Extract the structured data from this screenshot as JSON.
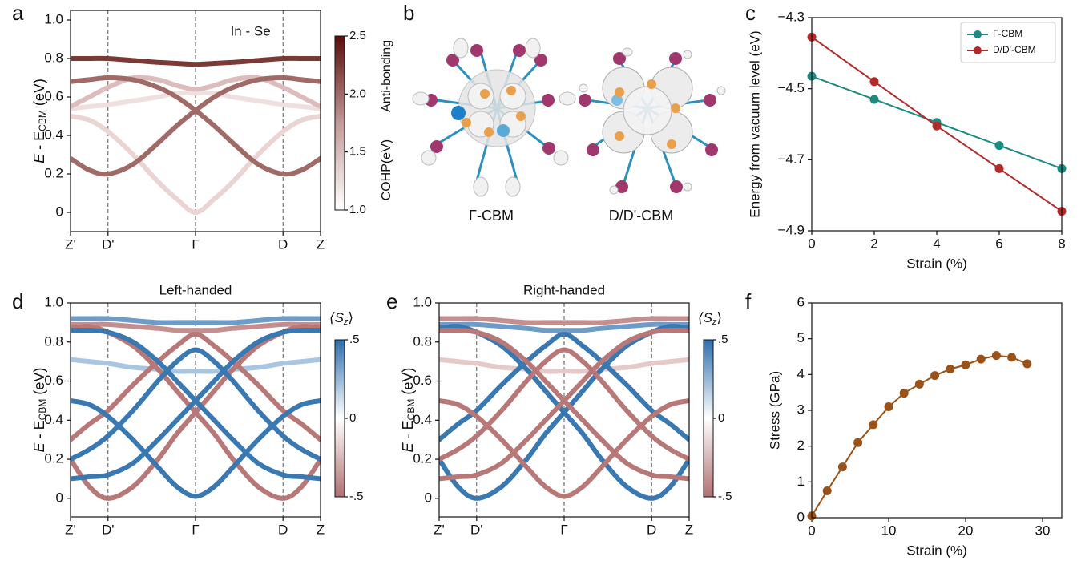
{
  "figure_b": {
    "panel": "b",
    "labels": [
      "Γ-CBM",
      "D/D'-CBM"
    ]
  },
  "chart_data": [
    {
      "type": "band",
      "panel": "a",
      "annotation": "In - Se",
      "ylabel": [
        "E",
        " - E",
        "CBM",
        " (eV)"
      ],
      "x": [
        0,
        0.075,
        0.15,
        0.25,
        0.35,
        0.425,
        0.5,
        0.575,
        0.65,
        0.75,
        0.85,
        0.925,
        1
      ],
      "xlim": [
        0,
        1
      ],
      "xticks": [
        {
          "value": 0,
          "label": "Z'"
        },
        {
          "value": 0.15,
          "label": "D'"
        },
        {
          "value": 0.5,
          "label": "Γ"
        },
        {
          "value": 0.85,
          "label": "D"
        },
        {
          "value": 1,
          "label": "Z"
        }
      ],
      "ylim": [
        -0.1,
        1.05
      ],
      "yticks": [
        0,
        0.2,
        0.4,
        0.6,
        0.8,
        {
          "value": 1,
          "label": "1.0"
        }
      ],
      "colorbar": {
        "clim": [
          1,
          2.5
        ],
        "colors": [
          "#ffffff",
          "#c29a98",
          "#5a0d0d"
        ],
        "ticks": [
          {
            "value": 1,
            "label": "1.0"
          },
          1.5,
          {
            "value": 2,
            "label": "2.0"
          },
          2.5
        ],
        "label": "COHP(eV)",
        "note": "Anti-bonding"
      },
      "series": [
        {
          "color": "#efe0e0",
          "values": [
            0.54,
            0.55,
            0.56,
            0.58,
            0.6,
            0.62,
            0.62,
            0.62,
            0.6,
            0.58,
            0.56,
            0.55,
            0.54
          ]
        },
        {
          "color": "#ead4d4",
          "values": [
            0.5,
            0.48,
            0.42,
            0.3,
            0.16,
            0.07,
            0,
            0.07,
            0.16,
            0.3,
            0.42,
            0.48,
            0.5
          ]
        },
        {
          "color": "#dcbcbc",
          "values": [
            0.55,
            0.6,
            0.65,
            0.7,
            0.69,
            0.66,
            0.64,
            0.66,
            0.69,
            0.7,
            0.65,
            0.6,
            0.55
          ]
        },
        {
          "color": "#a06a66",
          "values": [
            0.28,
            0.22,
            0.2,
            0.25,
            0.36,
            0.45,
            0.53,
            0.6,
            0.65,
            0.69,
            0.7,
            0.69,
            0.68
          ]
        },
        {
          "color": "#a06a66",
          "values": [
            0.68,
            0.69,
            0.7,
            0.69,
            0.65,
            0.6,
            0.53,
            0.45,
            0.36,
            0.25,
            0.2,
            0.22,
            0.28
          ]
        },
        {
          "color": "#7b3a36",
          "values": [
            0.8,
            0.8,
            0.8,
            0.79,
            0.78,
            0.775,
            0.77,
            0.775,
            0.78,
            0.79,
            0.8,
            0.8,
            0.8
          ]
        }
      ]
    },
    {
      "type": "line",
      "panel": "c",
      "xlabel": "Strain (%)",
      "ylabel": "Energy from vacuum level (eV)",
      "x": [
        0,
        2,
        4,
        6,
        8
      ],
      "xlim": [
        0,
        8
      ],
      "xticks": [
        0,
        2,
        4,
        6,
        8
      ],
      "ylim": [
        -4.9,
        -4.3
      ],
      "yticks": [
        {
          "value": -4.3,
          "label": "−4.3"
        },
        {
          "value": -4.5,
          "label": "−4.5"
        },
        {
          "value": -4.7,
          "label": "−4.7"
        },
        {
          "value": -4.9,
          "label": "−4.9"
        }
      ],
      "legend": "upper right",
      "series": [
        {
          "name": "Γ-CBM",
          "color": "#1b8a80",
          "values": [
            -4.465,
            -4.53,
            -4.595,
            -4.66,
            -4.725
          ]
        },
        {
          "name": "D/D'-CBM",
          "color": "#b22a2a",
          "values": [
            -4.355,
            -4.48,
            -4.605,
            -4.725,
            -4.845
          ]
        }
      ]
    },
    {
      "type": "band",
      "panel": "d",
      "title": "Left-handed",
      "ylabel": [
        "E",
        " - E",
        "CBM",
        " (eV)"
      ],
      "x": [
        0,
        0.075,
        0.15,
        0.25,
        0.35,
        0.425,
        0.5,
        0.575,
        0.65,
        0.75,
        0.85,
        0.925,
        1
      ],
      "xlim": [
        0,
        1
      ],
      "xticks": [
        {
          "value": 0,
          "label": "Z'"
        },
        {
          "value": 0.15,
          "label": "D'"
        },
        {
          "value": 0.5,
          "label": "Γ"
        },
        {
          "value": 0.85,
          "label": "D"
        },
        {
          "value": 1,
          "label": "Z"
        }
      ],
      "ylim": [
        -0.095,
        1
      ],
      "yticks": [
        0,
        0.2,
        0.4,
        0.6,
        0.8,
        {
          "value": 1,
          "label": "1.0"
        }
      ],
      "colorbar": {
        "clim": [
          -0.5,
          0.5
        ],
        "colors": [
          "#b07070",
          "#ffffff",
          "#2f6fad"
        ],
        "ticks": [
          {
            "value": 0.5,
            "label": ".5"
          },
          0,
          {
            "value": -0.5,
            "label": "-.5"
          }
        ],
        "label": [
          "⟨S",
          "z",
          "⟩"
        ]
      },
      "series": [
        {
          "color": "#a8c6e2",
          "values": [
            0.71,
            0.7,
            0.69,
            0.67,
            0.66,
            0.65,
            0.65,
            0.65,
            0.66,
            0.67,
            0.69,
            0.7,
            0.71
          ]
        },
        {
          "color": "#c58f8f",
          "values": [
            0.89,
            0.89,
            0.89,
            0.88,
            0.87,
            0.86,
            0.86,
            0.86,
            0.87,
            0.88,
            0.89,
            0.89,
            0.89
          ]
        },
        {
          "color": "#6d9cc8",
          "values": [
            0.92,
            0.92,
            0.92,
            0.91,
            0.9,
            0.9,
            0.9,
            0.9,
            0.9,
            0.91,
            0.92,
            0.92,
            0.92
          ]
        },
        {
          "color": "#b87878",
          "values": [
            0.2,
            0.06,
            0,
            0.06,
            0.2,
            0.33,
            0.44,
            0.55,
            0.66,
            0.78,
            0.85,
            0.88,
            0.87
          ]
        },
        {
          "color": "#b87878",
          "values": [
            0.87,
            0.88,
            0.85,
            0.78,
            0.66,
            0.55,
            0.44,
            0.33,
            0.2,
            0.06,
            0,
            0.06,
            0.2
          ]
        },
        {
          "color": "#b87878",
          "values": [
            0.3,
            0.38,
            0.45,
            0.58,
            0.7,
            0.78,
            0.84,
            0.78,
            0.7,
            0.58,
            0.45,
            0.38,
            0.3
          ]
        },
        {
          "color": "#3a78b2",
          "values": [
            0.5,
            0.48,
            0.42,
            0.3,
            0.16,
            0.06,
            0.01,
            0.06,
            0.16,
            0.3,
            0.42,
            0.48,
            0.5
          ]
        },
        {
          "color": "#3a78b2",
          "values": [
            0.1,
            0.11,
            0.12,
            0.18,
            0.3,
            0.4,
            0.5,
            0.6,
            0.7,
            0.8,
            0.85,
            0.86,
            0.86
          ]
        },
        {
          "color": "#3a78b2",
          "values": [
            0.86,
            0.86,
            0.85,
            0.8,
            0.7,
            0.6,
            0.5,
            0.4,
            0.3,
            0.18,
            0.12,
            0.11,
            0.1
          ]
        },
        {
          "color": "#3a78b2",
          "values": [
            0.2,
            0.25,
            0.32,
            0.45,
            0.6,
            0.7,
            0.76,
            0.7,
            0.6,
            0.45,
            0.32,
            0.25,
            0.2
          ]
        }
      ]
    },
    {
      "type": "band",
      "panel": "e",
      "title": "Right-handed",
      "ylabel": [
        "E",
        " - E",
        "CBM",
        " (eV)"
      ],
      "x": [
        0,
        0.075,
        0.15,
        0.25,
        0.35,
        0.425,
        0.5,
        0.575,
        0.65,
        0.75,
        0.85,
        0.925,
        1
      ],
      "xlim": [
        0,
        1
      ],
      "xticks": [
        {
          "value": 0,
          "label": "Z'"
        },
        {
          "value": 0.15,
          "label": "D'"
        },
        {
          "value": 0.5,
          "label": "Γ"
        },
        {
          "value": 0.85,
          "label": "D"
        },
        {
          "value": 1,
          "label": "Z"
        }
      ],
      "ylim": [
        -0.095,
        1
      ],
      "yticks": [
        0,
        0.2,
        0.4,
        0.6,
        0.8,
        {
          "value": 1,
          "label": "1.0"
        }
      ],
      "colorbar": {
        "clim": [
          -0.5,
          0.5
        ],
        "colors": [
          "#b07070",
          "#ffffff",
          "#2f6fad"
        ],
        "ticks": [
          {
            "value": 0.5,
            "label": ".5"
          },
          0,
          {
            "value": -0.5,
            "label": "-.5"
          }
        ],
        "label": [
          "⟨S",
          "z",
          "⟩"
        ]
      },
      "series": [
        {
          "color": "#e6c9c9",
          "values": [
            0.71,
            0.7,
            0.69,
            0.67,
            0.66,
            0.65,
            0.65,
            0.65,
            0.66,
            0.67,
            0.69,
            0.7,
            0.71
          ]
        },
        {
          "color": "#6d9cc8",
          "values": [
            0.89,
            0.89,
            0.89,
            0.88,
            0.87,
            0.86,
            0.86,
            0.86,
            0.87,
            0.88,
            0.89,
            0.89,
            0.89
          ]
        },
        {
          "color": "#c58f8f",
          "values": [
            0.92,
            0.92,
            0.92,
            0.91,
            0.9,
            0.9,
            0.9,
            0.9,
            0.9,
            0.91,
            0.92,
            0.92,
            0.92
          ]
        },
        {
          "color": "#3a78b2",
          "values": [
            0.2,
            0.06,
            0,
            0.06,
            0.2,
            0.33,
            0.44,
            0.55,
            0.66,
            0.78,
            0.85,
            0.88,
            0.87
          ]
        },
        {
          "color": "#3a78b2",
          "values": [
            0.87,
            0.88,
            0.85,
            0.78,
            0.66,
            0.55,
            0.44,
            0.33,
            0.2,
            0.06,
            0,
            0.06,
            0.2
          ]
        },
        {
          "color": "#3a78b2",
          "values": [
            0.3,
            0.38,
            0.45,
            0.58,
            0.7,
            0.78,
            0.84,
            0.78,
            0.7,
            0.58,
            0.45,
            0.38,
            0.3
          ]
        },
        {
          "color": "#b87878",
          "values": [
            0.5,
            0.48,
            0.42,
            0.3,
            0.16,
            0.06,
            0.01,
            0.06,
            0.16,
            0.3,
            0.42,
            0.48,
            0.5
          ]
        },
        {
          "color": "#b87878",
          "values": [
            0.1,
            0.11,
            0.12,
            0.18,
            0.3,
            0.4,
            0.5,
            0.6,
            0.7,
            0.8,
            0.85,
            0.86,
            0.86
          ]
        },
        {
          "color": "#b87878",
          "values": [
            0.86,
            0.86,
            0.85,
            0.8,
            0.7,
            0.6,
            0.5,
            0.4,
            0.3,
            0.18,
            0.12,
            0.11,
            0.1
          ]
        },
        {
          "color": "#b87878",
          "values": [
            0.2,
            0.25,
            0.32,
            0.45,
            0.6,
            0.7,
            0.76,
            0.7,
            0.6,
            0.45,
            0.32,
            0.25,
            0.2
          ]
        }
      ]
    },
    {
      "type": "line",
      "panel": "f",
      "xlabel": "Strain (%)",
      "ylabel": "Stress (GPa)",
      "x": [
        0,
        2,
        4,
        6,
        8,
        10,
        12,
        14,
        16,
        18,
        20,
        22,
        24,
        26,
        28
      ],
      "xlim": [
        0,
        32.5
      ],
      "xticks": [
        0,
        10,
        20,
        30
      ],
      "ylim": [
        0,
        6
      ],
      "yticks": [
        0,
        1,
        2,
        3,
        4,
        5,
        6
      ],
      "series": [
        {
          "color": "#9a5218",
          "values": [
            0.05,
            0.75,
            1.42,
            2.1,
            2.6,
            3.1,
            3.48,
            3.73,
            3.97,
            4.15,
            4.27,
            4.43,
            4.53,
            4.48,
            4.3
          ]
        }
      ]
    }
  ]
}
